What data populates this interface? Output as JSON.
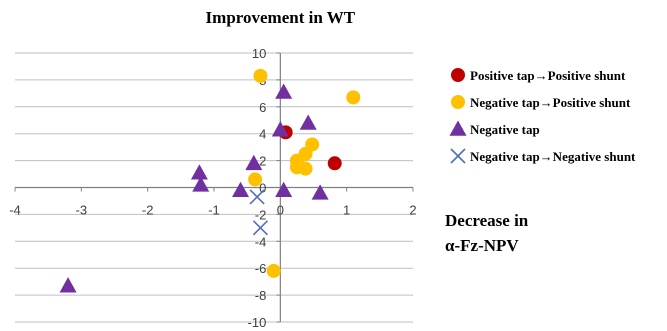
{
  "chart_data": {
    "type": "scatter",
    "title": "Improvement  in WT",
    "xlabel_lines": [
      "Decrease in",
      "α-Fz-NPV"
    ],
    "ylabel": "",
    "xlim": [
      -4,
      2
    ],
    "ylim": [
      -10,
      10
    ],
    "x_ticks": [
      -4,
      -3,
      -2,
      -1,
      0,
      1,
      2
    ],
    "y_ticks": [
      -10,
      -8,
      -6,
      -4,
      -2,
      0,
      2,
      4,
      6,
      8,
      10
    ],
    "grid": "horizontal",
    "legend_position": "right",
    "series": [
      {
        "name": "Positive tap→Positive shunt",
        "marker": "circle",
        "color": "#c00000",
        "points": [
          [
            0.08,
            4.1
          ],
          [
            0.82,
            1.8
          ]
        ]
      },
      {
        "name": "Negative tap→Positive shunt",
        "marker": "circle",
        "color": "#ffc000",
        "points": [
          [
            -0.3,
            8.3
          ],
          [
            1.1,
            6.7
          ],
          [
            0.48,
            3.2
          ],
          [
            0.38,
            2.5
          ],
          [
            0.25,
            2.0
          ],
          [
            0.25,
            1.5
          ],
          [
            0.38,
            1.4
          ],
          [
            -0.38,
            0.6
          ],
          [
            -0.1,
            -6.2
          ]
        ]
      },
      {
        "name": "Negative tap",
        "marker": "triangle",
        "color": "#7030a0",
        "points": [
          [
            0.05,
            7.1
          ],
          [
            0.42,
            4.8
          ],
          [
            0.0,
            4.3
          ],
          [
            -0.4,
            1.8
          ],
          [
            -1.22,
            1.1
          ],
          [
            -1.2,
            0.2
          ],
          [
            -0.6,
            -0.2
          ],
          [
            0.05,
            -0.2
          ],
          [
            0.6,
            -0.4
          ],
          [
            -3.2,
            -7.3
          ]
        ]
      },
      {
        "name": "Negative tap→Negative shunt",
        "marker": "x",
        "color": "#4f6ebd",
        "points": [
          [
            -0.35,
            -0.7
          ],
          [
            -0.3,
            -3.0
          ]
        ]
      }
    ]
  }
}
